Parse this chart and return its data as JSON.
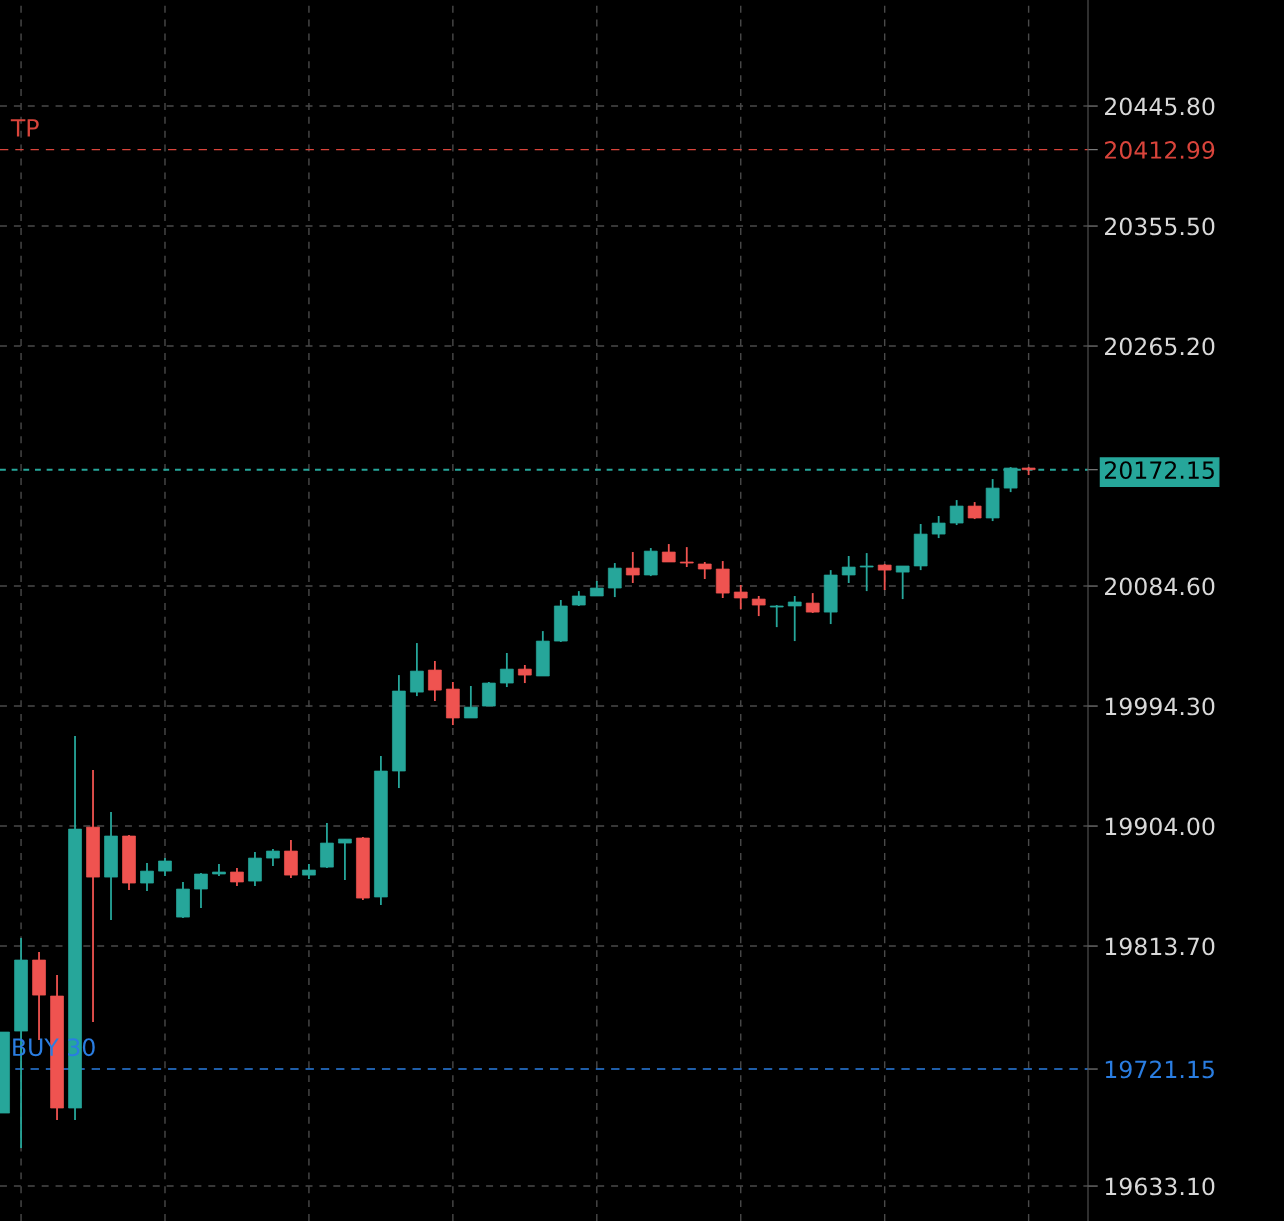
{
  "chart_data": {
    "type": "candlestick",
    "categories": [
      null,
      null,
      null,
      null,
      null,
      null,
      null,
      null,
      null,
      null,
      null,
      null,
      null,
      null,
      null,
      null,
      null,
      null,
      null,
      null,
      null,
      null,
      null,
      null,
      null,
      null,
      null,
      null,
      null,
      null,
      null,
      null,
      null,
      null,
      null,
      null,
      null,
      null,
      null,
      null,
      null,
      null,
      null,
      null,
      null,
      null,
      null,
      null,
      null,
      null,
      null,
      null,
      null,
      null,
      null,
      null,
      null,
      null
    ],
    "ohlc": [
      [
        19688.0,
        19749.0,
        19688.0,
        19749.0
      ],
      [
        19749.7,
        19819.7,
        19661.7,
        19803.2
      ],
      [
        19803.2,
        19809.2,
        19743.0,
        19776.8
      ],
      [
        19776.1,
        19791.9,
        19682.8,
        19691.8
      ],
      [
        19691.8,
        19971.7,
        19682.8,
        19901.7
      ],
      [
        19903.2,
        19946.1,
        19756.5,
        19865.6
      ],
      [
        19865.6,
        19914.5,
        19833.3,
        19896.5
      ],
      [
        19896.5,
        19897.2,
        19855.8,
        19861.1
      ],
      [
        19861.1,
        19876.2,
        19855.1,
        19870.1
      ],
      [
        19870.1,
        19879.9,
        19866.4,
        19877.7
      ],
      [
        19835.5,
        19861.9,
        19834.8,
        19856.6
      ],
      [
        19856.6,
        19868.6,
        19842.3,
        19867.9
      ],
      [
        19867.9,
        19875.4,
        19866.4,
        19869.4
      ],
      [
        19869.4,
        19872.4,
        19858.9,
        19861.9
      ],
      [
        19862.6,
        19884.4,
        19858.9,
        19879.9
      ],
      [
        19879.9,
        19886.7,
        19873.9,
        19885.2
      ],
      [
        19885.2,
        19893.5,
        19864.9,
        19867.1
      ],
      [
        19867.1,
        19875.4,
        19864.1,
        19870.9
      ],
      [
        19873.1,
        19906.3,
        19872.4,
        19891.2
      ],
      [
        19891.2,
        19894.2,
        19863.4,
        19894.2
      ],
      [
        19895.0,
        19895.7,
        19848.3,
        19849.8
      ],
      [
        19850.6,
        19956.7,
        19844.6,
        19945.4
      ],
      [
        19945.4,
        20017.6,
        19932.6,
        20005.6
      ],
      [
        20004.8,
        20041.7,
        20001.8,
        20020.6
      ],
      [
        20021.4,
        20028.2,
        19998.1,
        20006.3
      ],
      [
        20007.1,
        20012.4,
        19980.0,
        19985.3
      ],
      [
        19985.3,
        20009.4,
        19985.3,
        19993.5
      ],
      [
        19994.3,
        20012.4,
        19994.3,
        20011.6
      ],
      [
        20011.6,
        20034.2,
        20008.6,
        20022.1
      ],
      [
        20022.1,
        20025.2,
        20011.6,
        20017.6
      ],
      [
        20016.9,
        20050.7,
        20016.9,
        20043.2
      ],
      [
        20043.2,
        20074.1,
        20042.5,
        20069.6
      ],
      [
        20070.3,
        20080.8,
        20069.6,
        20077.1
      ],
      [
        20077.1,
        20088.4,
        20077.1,
        20083.1
      ],
      [
        20083.1,
        20101.9,
        20076.3,
        20098.1
      ],
      [
        20098.1,
        20110.2,
        20086.9,
        20092.9
      ],
      [
        20092.9,
        20113.2,
        20092.1,
        20110.9
      ],
      [
        20110.2,
        20116.2,
        20102.7,
        20102.7
      ],
      [
        20102.7,
        20113.9,
        20098.9,
        20101.9
      ],
      [
        20101.2,
        20102.7,
        20089.9,
        20097.4
      ],
      [
        20097.4,
        20103.4,
        20075.6,
        20079.3
      ],
      [
        20080.1,
        20085.4,
        20067.3,
        20075.6
      ],
      [
        20074.8,
        20077.1,
        20062.0,
        20070.3
      ],
      [
        20068.8,
        20070.3,
        20053.7,
        20069.6
      ],
      [
        20069.6,
        20077.1,
        20043.2,
        20072.6
      ],
      [
        20071.8,
        20079.3,
        20064.3,
        20065.0
      ],
      [
        20065.0,
        20096.6,
        20056.0,
        20092.9
      ],
      [
        20092.9,
        20107.2,
        20086.9,
        20098.9
      ],
      [
        20098.9,
        20109.4,
        20080.8,
        20099.7
      ],
      [
        20100.4,
        20101.2,
        20081.6,
        20096.6
      ],
      [
        20095.1,
        20099.7,
        20074.8,
        20099.7
      ],
      [
        20099.7,
        20131.3,
        20096.6,
        20123.7
      ],
      [
        20123.7,
        20137.3,
        20120.7,
        20132.0
      ],
      [
        20132.0,
        20149.3,
        20130.5,
        20144.8
      ],
      [
        20144.8,
        20147.8,
        20135.0,
        20135.8
      ],
      [
        20135.8,
        20165.1,
        20133.5,
        20158.3
      ],
      [
        20158.3,
        20174.1,
        20155.3,
        20173.4
      ],
      [
        20173.4,
        20174.1,
        20168.1,
        20172.15
      ]
    ],
    "colors": [
      "#26a69a",
      "#26a69a",
      "#ef5350",
      "#ef5350",
      "#26a69a",
      "#ef5350",
      "#26a69a",
      "#ef5350",
      "#26a69a",
      "#26a69a",
      "#26a69a",
      "#26a69a",
      "#26a69a",
      "#ef5350",
      "#26a69a",
      "#26a69a",
      "#ef5350",
      "#26a69a",
      "#26a69a",
      "#26a69a",
      "#ef5350",
      "#26a69a",
      "#26a69a",
      "#26a69a",
      "#ef5350",
      "#ef5350",
      "#26a69a",
      "#26a69a",
      "#26a69a",
      "#ef5350",
      "#26a69a",
      "#26a69a",
      "#26a69a",
      "#26a69a",
      "#26a69a",
      "#ef5350",
      "#26a69a",
      "#ef5350",
      "#ef5350",
      "#ef5350",
      "#ef5350",
      "#ef5350",
      "#ef5350",
      "#26a69a",
      "#26a69a",
      "#ef5350",
      "#26a69a",
      "#26a69a",
      "#26a69a",
      "#ef5350",
      "#26a69a",
      "#26a69a",
      "#26a69a",
      "#26a69a",
      "#ef5350",
      "#26a69a",
      "#26a69a",
      "#ef5350"
    ],
    "ylim": [
      19606.8,
      20525.6
    ],
    "yticks": [
      {
        "value": 19633.1,
        "label": "19633.10"
      },
      {
        "value": 19813.7,
        "label": "19813.70"
      },
      {
        "value": 19904.0,
        "label": "19904.00"
      },
      {
        "value": 19994.3,
        "label": "19994.30"
      },
      {
        "value": 20084.6,
        "label": "20084.60"
      },
      {
        "value": 20265.2,
        "label": "20265.20"
      },
      {
        "value": 20355.5,
        "label": "20355.50"
      },
      {
        "value": 20445.8,
        "label": "20445.80"
      },
      {
        "value": 20412.99,
        "label": "20412.99"
      },
      {
        "value": 20172.15,
        "label": "20172.15"
      },
      {
        "value": 19721.15,
        "label": "19721.15"
      }
    ],
    "grid": true,
    "ref_lines": [
      {
        "axis": "y",
        "value": 20412.99,
        "label": "TP",
        "color": "#d9443b",
        "line_style": "dashed"
      },
      {
        "axis": "y",
        "value": 20172.15,
        "label": null,
        "color": "#26a69a",
        "line_style": "dotted"
      },
      {
        "axis": "y",
        "value": 19721.15,
        "label": "BUY 30",
        "color": "#2a7de1",
        "line_style": "dashed"
      }
    ]
  }
}
